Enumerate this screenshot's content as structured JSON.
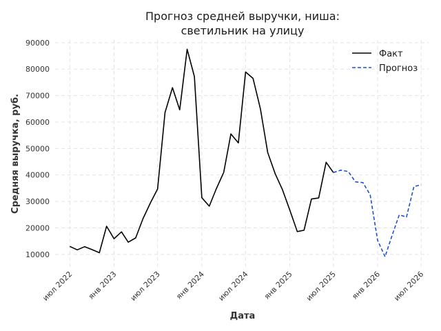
{
  "chart_data": {
    "type": "line",
    "title": [
      "Прогноз средней выручки, ниша:",
      "светильник на улицу"
    ],
    "xlabel": "Дата",
    "ylabel": "Средняя выручка, руб.",
    "xlim": [
      "2022-05-01",
      "2026-08-01"
    ],
    "ylim": [
      5000,
      91000
    ],
    "x_ticks": [
      {
        "date": "2022-07-01",
        "label": "июл 2022"
      },
      {
        "date": "2023-01-01",
        "label": "янв 2023"
      },
      {
        "date": "2023-07-01",
        "label": "июл 2023"
      },
      {
        "date": "2024-01-01",
        "label": "янв 2024"
      },
      {
        "date": "2024-07-01",
        "label": "июл 2024"
      },
      {
        "date": "2025-01-01",
        "label": "янв 2025"
      },
      {
        "date": "2025-07-01",
        "label": "июл 2025"
      },
      {
        "date": "2026-01-01",
        "label": "янв 2026"
      },
      {
        "date": "2026-07-01",
        "label": "июл 2026"
      }
    ],
    "y_ticks": [
      {
        "value": 10000,
        "label": "10000"
      },
      {
        "value": 20000,
        "label": "20000"
      },
      {
        "value": 30000,
        "label": "30000"
      },
      {
        "value": 40000,
        "label": "40000"
      },
      {
        "value": 50000,
        "label": "50000"
      },
      {
        "value": 60000,
        "label": "60000"
      },
      {
        "value": 70000,
        "label": "70000"
      },
      {
        "value": 80000,
        "label": "80000"
      },
      {
        "value": 90000,
        "label": "90000"
      }
    ],
    "grid": true,
    "legend_position": "top-right",
    "series": [
      {
        "name": "Факт",
        "color": "#000000",
        "style": "solid",
        "x": [
          "2022-07-01",
          "2022-08-01",
          "2022-09-01",
          "2022-10-01",
          "2022-11-01",
          "2022-12-01",
          "2023-01-01",
          "2023-02-01",
          "2023-03-01",
          "2023-04-01",
          "2023-05-01",
          "2023-06-01",
          "2023-07-01",
          "2023-08-01",
          "2023-09-01",
          "2023-10-01",
          "2023-11-01",
          "2023-12-01",
          "2024-01-01",
          "2024-02-01",
          "2024-03-01",
          "2024-04-01",
          "2024-05-01",
          "2024-06-01",
          "2024-07-01",
          "2024-08-01",
          "2024-09-01",
          "2024-10-01",
          "2024-11-01",
          "2024-12-01",
          "2025-01-01",
          "2025-02-01",
          "2025-03-01",
          "2025-04-01",
          "2025-05-01",
          "2025-06-01",
          "2025-07-01"
        ],
        "y": [
          13000,
          11700,
          12900,
          11800,
          10600,
          20600,
          15900,
          18500,
          14600,
          16200,
          23400,
          29400,
          34700,
          63600,
          73000,
          64600,
          87500,
          77200,
          31400,
          28200,
          34700,
          41000,
          55500,
          52100,
          78900,
          76500,
          64900,
          48500,
          40500,
          34500,
          26700,
          18600,
          19100,
          30900,
          31300,
          44800,
          40900
        ]
      },
      {
        "name": "Прогноз",
        "color": "#1f4fd1",
        "style": "dashed",
        "x": [
          "2025-07-01",
          "2025-08-01",
          "2025-09-01",
          "2025-10-01",
          "2025-11-01",
          "2025-12-01",
          "2026-01-01",
          "2026-02-01",
          "2026-03-01",
          "2026-04-01",
          "2026-05-01",
          "2026-06-01",
          "2026-07-01"
        ],
        "y": [
          40900,
          41800,
          41300,
          37400,
          37100,
          32500,
          15300,
          9100,
          16800,
          24900,
          24100,
          35600,
          36300
        ]
      }
    ]
  }
}
